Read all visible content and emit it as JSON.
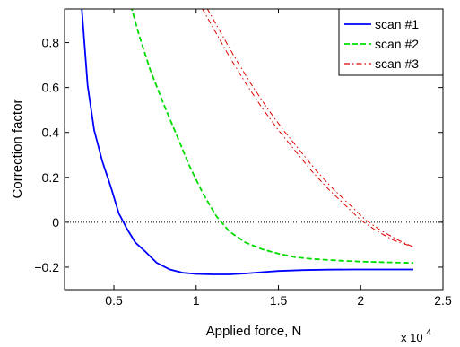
{
  "chart_data": {
    "type": "line",
    "title": "",
    "xlabel": "Applied force, N",
    "ylabel": "Correction factor",
    "x_multiplier": "x 10",
    "x_multiplier_exp": "4",
    "xlim": [
      0.2,
      2.5
    ],
    "ylim": [
      -0.3,
      0.95
    ],
    "xticks": [
      0.5,
      1,
      1.5,
      2,
      2.5
    ],
    "xtick_labels": [
      "0.5",
      "1",
      "1.5",
      "2",
      "2.5"
    ],
    "yticks": [
      -0.2,
      0,
      0.2,
      0.4,
      0.6,
      0.8
    ],
    "ytick_labels": [
      "−0.2",
      "0",
      "0.2",
      "0.4",
      "0.6",
      "0.8"
    ],
    "grid": false,
    "legend_position": "top-right",
    "reference_line": {
      "y": 0,
      "style": "dotted",
      "color": "#000000"
    },
    "series": [
      {
        "name": "scan #1",
        "color": "#0000ff",
        "style": "solid",
        "lines": [
          {
            "x": [
              0.3,
              0.34,
              0.38,
              0.43,
              0.48,
              0.53,
              0.58,
              0.63,
              0.69,
              0.76,
              0.84,
              0.92,
              1.0,
              1.1,
              1.2,
              1.3,
              1.4,
              1.5,
              1.65,
              1.8,
              1.95,
              2.1,
              2.2,
              2.32
            ],
            "y": [
              1.0,
              0.61,
              0.41,
              0.27,
              0.16,
              0.04,
              -0.03,
              -0.09,
              -0.13,
              -0.18,
              -0.21,
              -0.225,
              -0.23,
              -0.232,
              -0.232,
              -0.228,
              -0.222,
              -0.217,
              -0.213,
              -0.211,
              -0.21,
              -0.21,
              -0.21,
              -0.21
            ]
          }
        ]
      },
      {
        "name": "scan #2",
        "color": "#00dd00",
        "style": "dashed",
        "lines": [
          {
            "x": [
              0.59,
              0.65,
              0.72,
              0.8,
              0.88,
              0.96,
              1.04,
              1.12,
              1.2,
              1.3,
              1.4,
              1.5,
              1.6,
              1.7,
              1.8,
              1.9,
              2.0,
              2.1,
              2.2,
              2.32
            ],
            "y": [
              1.0,
              0.84,
              0.68,
              0.53,
              0.39,
              0.25,
              0.13,
              0.03,
              -0.04,
              -0.09,
              -0.12,
              -0.14,
              -0.155,
              -0.163,
              -0.168,
              -0.172,
              -0.175,
              -0.177,
              -0.179,
              -0.181
            ]
          }
        ]
      },
      {
        "name": "scan #3",
        "color": "#dd0000",
        "style": "dashdot",
        "lines": [
          {
            "x": [
              1.0,
              1.1,
              1.2,
              1.3,
              1.4,
              1.5,
              1.6,
              1.7,
              1.8,
              1.9,
              2.0,
              2.1,
              2.2,
              2.32
            ],
            "y": [
              1.0,
              0.87,
              0.74,
              0.62,
              0.51,
              0.41,
              0.32,
              0.23,
              0.15,
              0.08,
              0.01,
              -0.04,
              -0.08,
              -0.11
            ]
          },
          {
            "x": [
              1.03,
              1.13,
              1.23,
              1.33,
              1.43,
              1.53,
              1.63,
              1.73,
              1.83,
              1.93,
              2.03,
              2.13,
              2.23,
              2.32
            ],
            "y": [
              1.0,
              0.87,
              0.74,
              0.62,
              0.51,
              0.41,
              0.32,
              0.23,
              0.15,
              0.08,
              0.01,
              -0.04,
              -0.08,
              -0.11
            ]
          }
        ]
      }
    ]
  }
}
